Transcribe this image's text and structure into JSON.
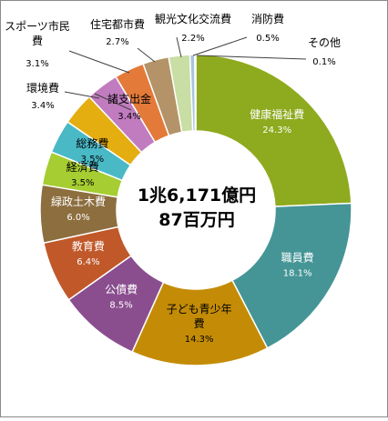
{
  "chart_data": {
    "type": "pie",
    "center_text": [
      "1兆6,171億円",
      "87百万円"
    ],
    "slices": [
      {
        "name": "健康福祉費",
        "name_lines": [
          "健康福祉費"
        ],
        "value": 24.3,
        "label": "24.3%",
        "color": "#8eaa1e",
        "label_color": "#ffffff"
      },
      {
        "name": "職員費",
        "name_lines": [
          "職員費"
        ],
        "value": 18.1,
        "label": "18.1%",
        "color": "#459596",
        "label_color": "#ffffff"
      },
      {
        "name": "子ども青少年費",
        "name_lines": [
          "子ども青少年",
          "費"
        ],
        "value": 14.3,
        "label": "14.3%",
        "color": "#c48c06",
        "label_color": "#000000"
      },
      {
        "name": "公債費",
        "name_lines": [
          "公債費"
        ],
        "value": 8.5,
        "label": "8.5%",
        "color": "#8a4e8f",
        "label_color": "#ffffff"
      },
      {
        "name": "教育費",
        "name_lines": [
          "教育費"
        ],
        "value": 6.4,
        "label": "6.4%",
        "color": "#c0582a",
        "label_color": "#ffffff"
      },
      {
        "name": "緑政土木費",
        "name_lines": [
          "緑政土木費"
        ],
        "value": 6.0,
        "label": "6.0%",
        "color": "#8d6e3f",
        "label_color": "#ffffff"
      },
      {
        "name": "経済費",
        "name_lines": [
          "経済費"
        ],
        "value": 3.5,
        "label": "3.5%",
        "color": "#a6cd31",
        "label_color": "#000000"
      },
      {
        "name": "総務費",
        "name_lines": [
          "総務費"
        ],
        "value": 3.5,
        "label": "3.5%",
        "color": "#4ab9c6",
        "label_color": "#000000"
      },
      {
        "name": "環境費",
        "name_lines": [
          "環境費"
        ],
        "value": 3.4,
        "label": "3.4%",
        "color": "#e4ad10",
        "label_color": "#000000"
      },
      {
        "name": "諸支出金",
        "name_lines": [
          "諸支出金"
        ],
        "value": 3.4,
        "label": "3.4%",
        "color": "#c07cbf",
        "label_color": "#000000"
      },
      {
        "name": "スポーツ市民費",
        "name_lines": [
          "スポーツ市民",
          "費"
        ],
        "value": 3.1,
        "label": "3.1%",
        "color": "#e37a3a",
        "label_color": "#000000"
      },
      {
        "name": "住宅都市費",
        "name_lines": [
          "住宅都市費"
        ],
        "value": 2.7,
        "label": "2.7%",
        "color": "#b39367",
        "label_color": "#000000"
      },
      {
        "name": "観光文化交流費",
        "name_lines": [
          "観光文化交流費"
        ],
        "value": 2.2,
        "label": "2.2%",
        "color": "#c8dea4",
        "label_color": "#000000"
      },
      {
        "name": "消防費",
        "name_lines": [
          "消防費"
        ],
        "value": 0.5,
        "label": "0.5%",
        "color": "#a7c6dc",
        "label_color": "#000000"
      },
      {
        "name": "その他",
        "name_lines": [
          "その他"
        ],
        "value": 0.1,
        "label": "0.1%",
        "color": "#6f8fb5",
        "label_color": "#000000"
      }
    ]
  }
}
